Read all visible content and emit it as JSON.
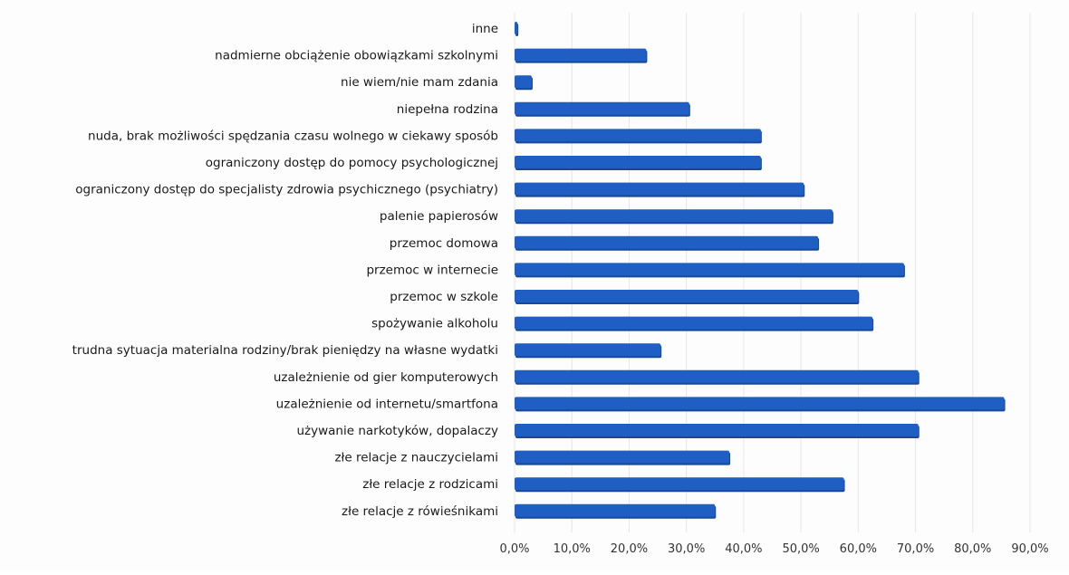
{
  "chart_data": {
    "type": "bar",
    "orientation": "horizontal",
    "title": "",
    "xlabel": "",
    "ylabel": "",
    "categories": [
      "inne",
      "nadmierne obciążenie obowiązkami szkolnymi",
      "nie wiem/nie mam zdania",
      "niepełna rodzina",
      "nuda, brak możliwości spędzania czasu wolnego w ciekawy sposób",
      "ograniczony dostęp do pomocy psychologicznej",
      "ograniczony dostęp do specjalisty zdrowia psychicznego (psychiatry)",
      "palenie papierosów",
      "przemoc domowa",
      "przemoc w internecie",
      "przemoc w szkole",
      "spożywanie alkoholu",
      "trudna sytuacja materialna rodziny/brak pieniędzy na własne wydatki",
      "uzależnienie od gier komputerowych",
      "uzależnienie od internetu/smartfona",
      "używanie narkotyków, dopalaczy",
      "złe relacje z nauczycielami",
      "złe relacje z rodzicami",
      "złe relacje z rówieśnikami"
    ],
    "values": [
      0.5,
      23.0,
      3.0,
      30.5,
      43.0,
      43.0,
      50.5,
      55.5,
      53.0,
      68.0,
      60.0,
      62.5,
      25.5,
      70.5,
      85.5,
      70.5,
      37.5,
      57.5,
      35.0
    ],
    "xlim": [
      0,
      90
    ],
    "xticks": [
      "0,0%",
      "10,0%",
      "20,0%",
      "30,0%",
      "40,0%",
      "50,0%",
      "60,0%",
      "70,0%",
      "80,0%",
      "90,0%"
    ],
    "grid": true,
    "legend": "none",
    "colors": {
      "bar": "#1f5fc4",
      "bar_shadow": "#17489a",
      "grid": "#e6e6e6",
      "text": "#1a1a1a",
      "tick_text": "#333333"
    }
  }
}
